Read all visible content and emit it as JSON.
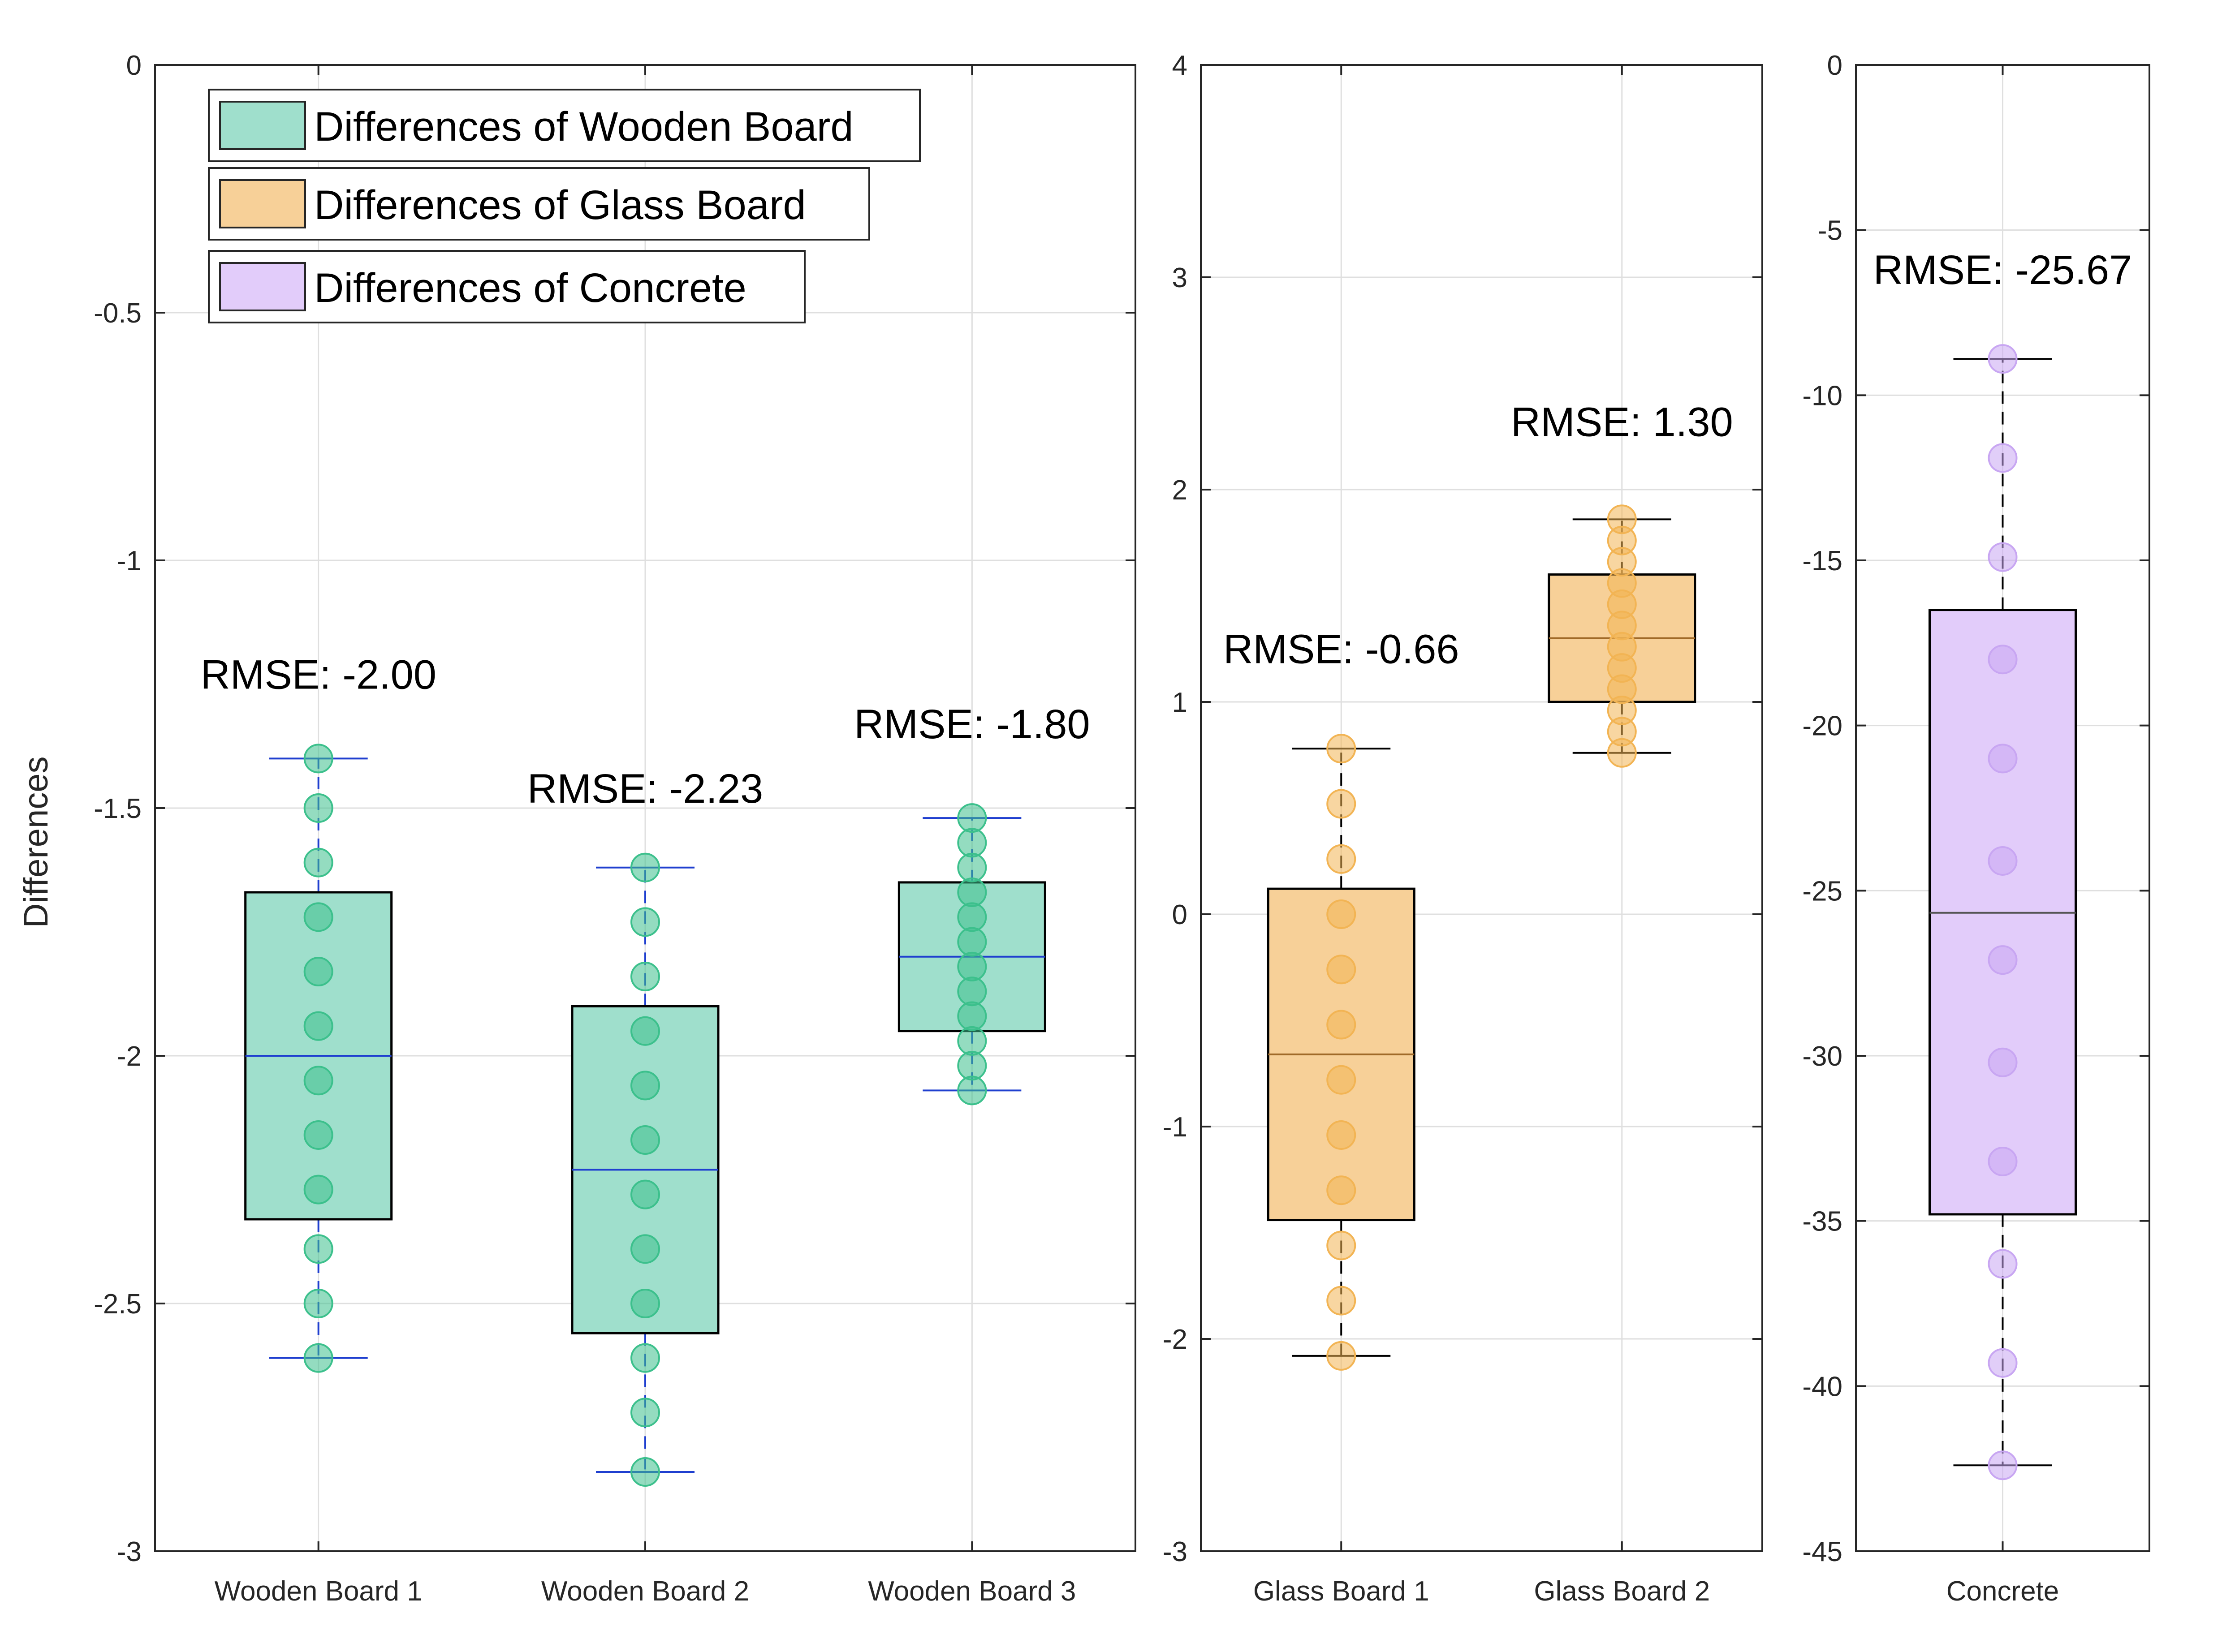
{
  "chart_data": [
    {
      "type": "box",
      "ylabel": "Differences",
      "ylim": [
        -3,
        0
      ],
      "yticks": [
        0,
        -0.5,
        -1,
        -1.5,
        -2,
        -2.5,
        -3
      ],
      "ytick_labels": [
        "0",
        "-0.5",
        "-1",
        "-1.5",
        "-2",
        "-2.5",
        "-3"
      ],
      "categories": [
        "Wooden Board 1",
        "Wooden Board 2",
        "Wooden Board 3"
      ],
      "colors": {
        "fill": "#9fdfcc",
        "edge": "#000000",
        "median": "#1f3fcf",
        "whisker": "#1f3fcf",
        "point": "#3cc08c"
      },
      "boxes": [
        {
          "q1": -2.33,
          "median": -2.0,
          "q3": -1.67,
          "whisker_low": -2.61,
          "whisker_high": -1.4,
          "points": [
            -1.4,
            -1.5,
            -1.61,
            -1.72,
            -1.83,
            -1.94,
            -2.05,
            -2.16,
            -2.27,
            -2.39,
            -2.5,
            -2.61
          ],
          "annotation": {
            "text": "RMSE: -2.00",
            "y": -1.23
          }
        },
        {
          "q1": -2.56,
          "median": -2.23,
          "q3": -1.9,
          "whisker_low": -2.84,
          "whisker_high": -1.62,
          "points": [
            -1.62,
            -1.73,
            -1.84,
            -1.95,
            -2.06,
            -2.17,
            -2.28,
            -2.39,
            -2.5,
            -2.61,
            -2.72,
            -2.84
          ],
          "annotation": {
            "text": "RMSE: -2.23",
            "y": -1.46
          }
        },
        {
          "q1": -1.95,
          "median": -1.8,
          "q3": -1.65,
          "whisker_low": -2.07,
          "whisker_high": -1.52,
          "points": [
            -1.52,
            -1.57,
            -1.62,
            -1.67,
            -1.72,
            -1.77,
            -1.82,
            -1.87,
            -1.92,
            -1.97,
            -2.02,
            -2.07
          ],
          "annotation": {
            "text": "RMSE: -1.80",
            "y": -1.33
          }
        }
      ]
    },
    {
      "type": "box",
      "ylim": [
        -3,
        4
      ],
      "yticks": [
        4,
        3,
        2,
        1,
        0,
        -1,
        -2,
        -3
      ],
      "ytick_labels": [
        "4",
        "3",
        "2",
        "1",
        "0",
        "-1",
        "-2",
        "-3"
      ],
      "categories": [
        "Glass Board 1",
        "Glass Board 2"
      ],
      "colors": {
        "fill": "#f7d098",
        "edge": "#000000",
        "median": "#a06a28",
        "whisker": "#000000",
        "point": "#f2b454"
      },
      "boxes": [
        {
          "q1": -1.44,
          "median": -0.66,
          "q3": 0.12,
          "whisker_low": -2.08,
          "whisker_high": 0.78,
          "points": [
            0.78,
            0.52,
            0.26,
            0.0,
            -0.26,
            -0.52,
            -0.78,
            -1.04,
            -1.3,
            -1.56,
            -1.82,
            -2.08
          ],
          "annotation": {
            "text": "RMSE: -0.66",
            "y": 1.25
          }
        },
        {
          "q1": 1.0,
          "median": 1.3,
          "q3": 1.6,
          "whisker_low": 0.76,
          "whisker_high": 1.86,
          "points": [
            1.86,
            1.76,
            1.66,
            1.56,
            1.46,
            1.36,
            1.26,
            1.16,
            1.06,
            0.96,
            0.86,
            0.76
          ],
          "annotation": {
            "text": "RMSE: 1.30",
            "y": 2.32
          }
        }
      ]
    },
    {
      "type": "box",
      "ylim": [
        -45,
        0
      ],
      "yticks": [
        0,
        -5,
        -10,
        -15,
        -20,
        -25,
        -30,
        -35,
        -40,
        -45
      ],
      "ytick_labels": [
        "0",
        "-5",
        "-10",
        "-15",
        "-20",
        "-25",
        "-30",
        "-35",
        "-40",
        "-45"
      ],
      "categories": [
        "Concrete"
      ],
      "colors": {
        "fill": "#e2ccfa",
        "edge": "#000000",
        "median": "#555555",
        "whisker": "#000000",
        "point": "#c8a6f2"
      },
      "boxes": [
        {
          "q1": -34.8,
          "median": -25.67,
          "q3": -16.5,
          "whisker_low": -42.4,
          "whisker_high": -8.9,
          "points": [
            -8.9,
            -11.9,
            -14.9,
            -18.0,
            -21.0,
            -24.1,
            -27.1,
            -30.2,
            -33.2,
            -36.3,
            -39.3,
            -42.4
          ],
          "annotation": {
            "text": "RMSE: -25.67",
            "y": -6.2
          }
        }
      ]
    }
  ],
  "legend": {
    "placement": "top-left",
    "entries": [
      {
        "label": "Differences of Wooden Board",
        "color": "#9fdfcc"
      },
      {
        "label": "Differences of Glass Board",
        "color": "#f7d098"
      },
      {
        "label": "Differences of Concrete",
        "color": "#e2ccfa"
      }
    ]
  }
}
